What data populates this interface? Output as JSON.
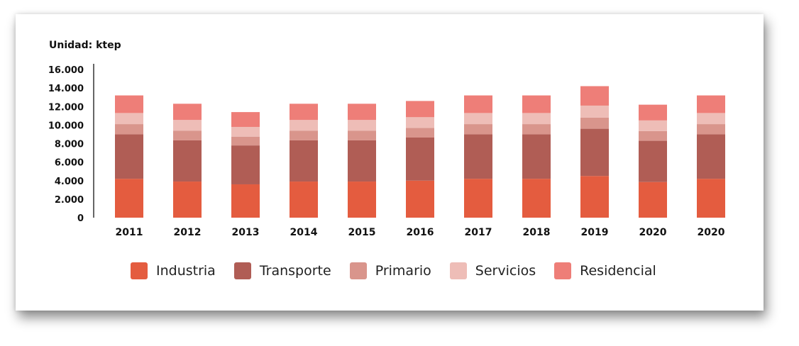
{
  "chart_data": {
    "type": "bar",
    "stacked": true,
    "unit_label": "Unidad: ktep",
    "categories": [
      "2011",
      "2012",
      "2013",
      "2014",
      "2015",
      "2016",
      "2017",
      "2018",
      "2019",
      "2020",
      "2020"
    ],
    "ylim": [
      0,
      16000
    ],
    "yticks": [
      "0",
      "2.000",
      "4.000",
      "6.000",
      "8.000",
      "10.000",
      "12.000",
      "14.000",
      "16.000"
    ],
    "ytick_values": [
      0,
      2000,
      4000,
      6000,
      8000,
      10000,
      12000,
      14000,
      16000
    ],
    "series": [
      {
        "name": "Industria",
        "color": "#e45c3f",
        "values": [
          4200,
          3900,
          3600,
          3900,
          3900,
          4000,
          4200,
          4200,
          4500,
          3850,
          4200
        ]
      },
      {
        "name": "Transporte",
        "color": "#b05d55",
        "values": [
          4800,
          4450,
          4200,
          4450,
          4450,
          4650,
          4800,
          4800,
          5100,
          4450,
          4800
        ]
      },
      {
        "name": "Primario",
        "color": "#d9958c",
        "values": [
          1100,
          1050,
          950,
          1050,
          1050,
          1050,
          1100,
          1100,
          1200,
          1050,
          1100
        ]
      },
      {
        "name": "Servicios",
        "color": "#eebdb7",
        "values": [
          1200,
          1150,
          1050,
          1150,
          1150,
          1150,
          1200,
          1200,
          1300,
          1150,
          1200
        ]
      },
      {
        "name": "Residencial",
        "color": "#ee7e78",
        "values": [
          1900,
          1750,
          1600,
          1750,
          1750,
          1750,
          1900,
          1900,
          2100,
          1700,
          1900
        ]
      }
    ],
    "legend_position": "bottom",
    "grid": false
  }
}
